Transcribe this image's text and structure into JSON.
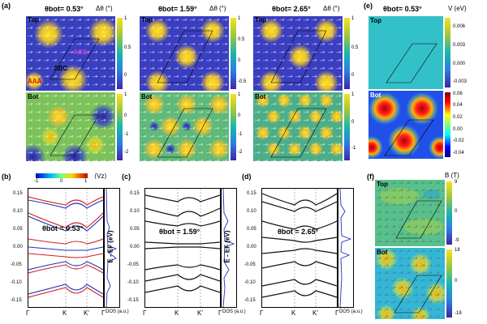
{
  "panel_a": {
    "label": "(a)",
    "row_top": "Top",
    "row_bot": "Bot",
    "cb_title": "Δθ (°)",
    "annots": {
      "abc": "ABC",
      "acb": "ACB",
      "aaa": "AAA"
    },
    "cols": [
      {
        "title": "θbot= 0.53°",
        "top_ticks": [
          "1",
          "0.5",
          "0"
        ],
        "bot_ticks": [
          "1",
          "0",
          "-1",
          "-2"
        ]
      },
      {
        "title": "θbot= 1.59°",
        "top_ticks": [
          "1",
          "0.5",
          "0",
          "-0.5"
        ],
        "bot_ticks": [
          "1",
          "0",
          "-1",
          "-2"
        ]
      },
      {
        "title": "θbot= 2.65°",
        "top_ticks": [
          "1",
          "0.5",
          "0"
        ],
        "bot_ticks": [
          "1",
          "0",
          "-1"
        ]
      }
    ]
  },
  "panel_e": {
    "label": "(e)",
    "title": "θbot= 0.53°",
    "cb_title": "V (eV)",
    "row_top": "Top",
    "row_bot": "Bot",
    "top_ticks": [
      "0.006",
      "0.003",
      "0.000",
      "-0.003"
    ],
    "bot_ticks": [
      "0.06",
      "0.04",
      "0.02",
      "0.00",
      "-0.02",
      "-0.04"
    ]
  },
  "panel_f": {
    "label": "(f)",
    "cb_title": "B (T)",
    "row_top": "Top",
    "row_bot": "Bot",
    "top_ticks": [
      "9",
      "0",
      "-9"
    ],
    "bot_ticks": [
      "18",
      "0",
      "-18"
    ]
  },
  "bands": {
    "colorbar_label": "⟨Vz⟩",
    "colorbar_ticks": [
      "-1",
      "0",
      "1"
    ],
    "ylabel": "E - EF (eV)",
    "yticks": [
      "0.15",
      "0.10",
      "0.05",
      "0.00",
      "-0.05",
      "-0.10",
      "-0.15"
    ],
    "kpoints": [
      "Γ",
      "K",
      "K'",
      "Γ"
    ],
    "dos_label": "DOS (a.u.)",
    "panels": [
      {
        "label": "(b)",
        "title": "θbot = 0.53°"
      },
      {
        "label": "(c)",
        "title": "θbot = 1.59°"
      },
      {
        "label": "(d)",
        "title": "θbot = 2.65°"
      }
    ]
  },
  "colors": {
    "yellow": "#f6e91f",
    "blue": "#3a3fc8",
    "teal": "#21a8a8",
    "red": "#d4202a",
    "navy": "#1a1a8a"
  }
}
